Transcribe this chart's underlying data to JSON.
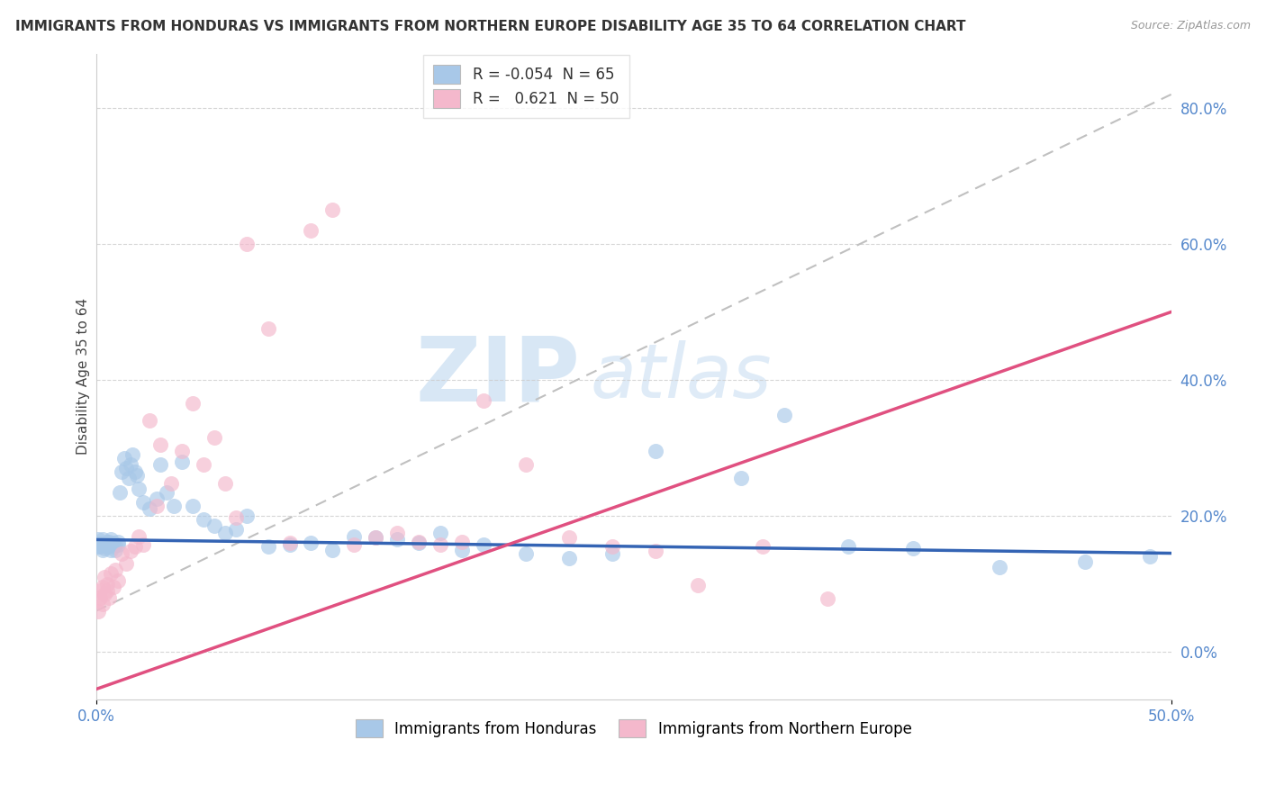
{
  "title": "IMMIGRANTS FROM HONDURAS VS IMMIGRANTS FROM NORTHERN EUROPE DISABILITY AGE 35 TO 64 CORRELATION CHART",
  "source": "Source: ZipAtlas.com",
  "ylabel": "Disability Age 35 to 64",
  "xlim": [
    0.0,
    0.5
  ],
  "ylim": [
    -0.07,
    0.88
  ],
  "ytick_positions": [
    0.0,
    0.2,
    0.4,
    0.6,
    0.8
  ],
  "ytick_labels": [
    "0.0%",
    "20.0%",
    "40.0%",
    "60.0%",
    "80.0%"
  ],
  "xtick_positions": [
    0.0,
    0.5
  ],
  "xtick_labels": [
    "0.0%",
    "50.0%"
  ],
  "blue_color": "#a8c8e8",
  "pink_color": "#f4b8cc",
  "blue_line_color": "#3464b4",
  "pink_line_color": "#e05080",
  "gray_line_color": "#c0c0c0",
  "R_blue": -0.054,
  "N_blue": 65,
  "R_pink": 0.621,
  "N_pink": 50,
  "watermark_zip": "ZIP",
  "watermark_atlas": "atlas",
  "legend_blue_label": "Immigrants from Honduras",
  "legend_pink_label": "Immigrants from Northern Europe",
  "blue_line_x": [
    0.0,
    0.5
  ],
  "blue_line_y": [
    0.165,
    0.145
  ],
  "pink_line_x": [
    0.0,
    0.5
  ],
  "pink_line_y": [
    -0.055,
    0.5
  ],
  "gray_line_x": [
    0.0,
    0.5
  ],
  "gray_line_y": [
    0.06,
    0.82
  ],
  "blue_scatter_x": [
    0.001,
    0.001,
    0.002,
    0.002,
    0.003,
    0.003,
    0.004,
    0.004,
    0.005,
    0.005,
    0.006,
    0.006,
    0.007,
    0.007,
    0.008,
    0.008,
    0.009,
    0.009,
    0.01,
    0.01,
    0.011,
    0.012,
    0.013,
    0.014,
    0.015,
    0.016,
    0.017,
    0.018,
    0.019,
    0.02,
    0.022,
    0.025,
    0.028,
    0.03,
    0.033,
    0.036,
    0.04,
    0.045,
    0.05,
    0.055,
    0.06,
    0.065,
    0.07,
    0.08,
    0.09,
    0.1,
    0.11,
    0.12,
    0.13,
    0.14,
    0.15,
    0.16,
    0.17,
    0.18,
    0.2,
    0.22,
    0.24,
    0.26,
    0.3,
    0.32,
    0.35,
    0.38,
    0.42,
    0.46,
    0.49
  ],
  "blue_scatter_y": [
    0.155,
    0.165,
    0.16,
    0.155,
    0.15,
    0.165,
    0.158,
    0.152,
    0.162,
    0.155,
    0.158,
    0.162,
    0.15,
    0.165,
    0.155,
    0.16,
    0.15,
    0.158,
    0.162,
    0.158,
    0.235,
    0.265,
    0.285,
    0.27,
    0.255,
    0.275,
    0.29,
    0.265,
    0.26,
    0.24,
    0.22,
    0.21,
    0.225,
    0.275,
    0.235,
    0.215,
    0.28,
    0.215,
    0.195,
    0.185,
    0.175,
    0.18,
    0.2,
    0.155,
    0.158,
    0.16,
    0.15,
    0.17,
    0.168,
    0.165,
    0.16,
    0.175,
    0.15,
    0.158,
    0.145,
    0.138,
    0.145,
    0.295,
    0.255,
    0.348,
    0.155,
    0.152,
    0.125,
    0.132,
    0.14
  ],
  "pink_scatter_x": [
    0.001,
    0.001,
    0.002,
    0.002,
    0.003,
    0.003,
    0.004,
    0.004,
    0.005,
    0.005,
    0.006,
    0.007,
    0.008,
    0.009,
    0.01,
    0.012,
    0.014,
    0.016,
    0.018,
    0.02,
    0.022,
    0.025,
    0.028,
    0.03,
    0.035,
    0.04,
    0.045,
    0.05,
    0.055,
    0.06,
    0.065,
    0.07,
    0.08,
    0.09,
    0.1,
    0.11,
    0.12,
    0.13,
    0.14,
    0.15,
    0.16,
    0.17,
    0.18,
    0.2,
    0.22,
    0.24,
    0.26,
    0.28,
    0.31,
    0.34
  ],
  "pink_scatter_y": [
    0.075,
    0.06,
    0.09,
    0.08,
    0.095,
    0.07,
    0.11,
    0.085,
    0.1,
    0.09,
    0.08,
    0.115,
    0.095,
    0.12,
    0.105,
    0.145,
    0.13,
    0.148,
    0.155,
    0.17,
    0.158,
    0.34,
    0.215,
    0.305,
    0.248,
    0.295,
    0.365,
    0.275,
    0.315,
    0.248,
    0.198,
    0.6,
    0.475,
    0.16,
    0.62,
    0.65,
    0.158,
    0.168,
    0.175,
    0.162,
    0.158,
    0.162,
    0.37,
    0.275,
    0.168,
    0.155,
    0.148,
    0.098,
    0.155,
    0.078
  ]
}
